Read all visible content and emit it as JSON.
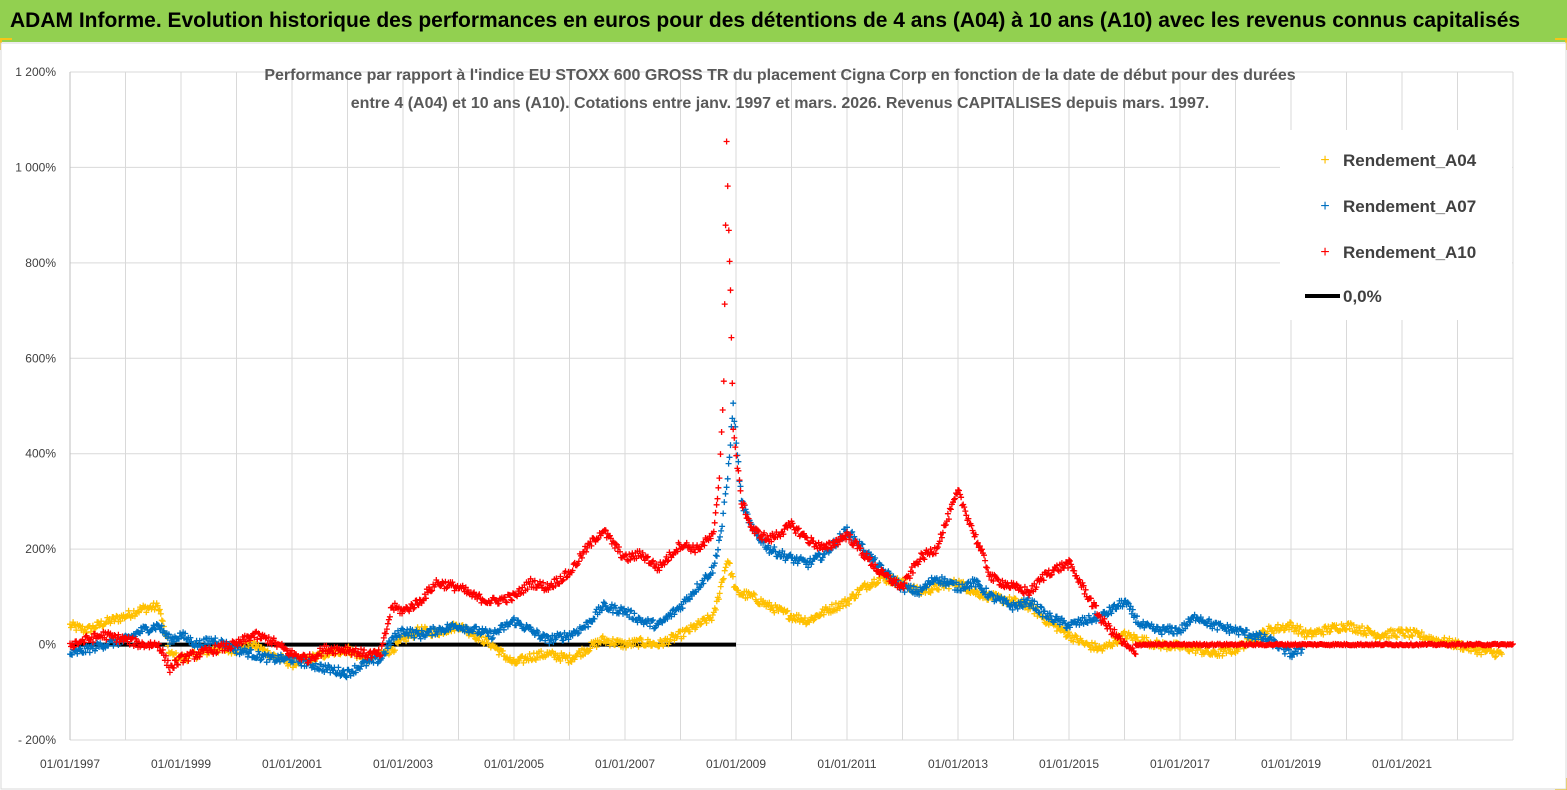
{
  "banner": {
    "title": "ADAM Informe. Evolution historique des performances en euros pour des détentions de 4 ans (A04) à 10 ans (A10) avec les revenus connus capitalisés",
    "background": "#92d050"
  },
  "colors": {
    "A04": "#ffc000",
    "A07": "#0070c0",
    "A10": "#ff0000",
    "zero": "#000000",
    "grid": "#d9d9d9"
  },
  "chart_data": {
    "type": "scatter",
    "title_line1": "Performance par rapport à l'indice EU STOXX 600 GROSS TR  du placement Cigna Corp en fonction de la date de début pour des durées",
    "title_line2": "entre 4 (A04) et 10 ans (A10). Cotations entre janv. 1997 et mars. 2026. Revenus CAPITALISES depuis mars. 1997.",
    "xlabel": "",
    "ylabel": "",
    "x_range": [
      "01/01/1997",
      "01/01/2023"
    ],
    "ylim": [
      -200,
      1200
    ],
    "y_ticks": [
      "- 200%",
      "0%",
      "200%",
      "400%",
      "600%",
      "800%",
      "1 000%",
      "1 200%"
    ],
    "x_ticks": [
      "01/01/1997",
      "01/01/1999",
      "01/01/2001",
      "01/01/2003",
      "01/01/2005",
      "01/01/2007",
      "01/01/2009",
      "01/01/2011",
      "01/01/2013",
      "01/01/2015",
      "01/01/2017",
      "01/01/2019",
      "01/01/2021"
    ],
    "legend_position": "top-right",
    "series": [
      {
        "name": "Rendement_A04",
        "x": [
          1997.0,
          1997.3,
          1997.6,
          1998.0,
          1998.3,
          1998.6,
          1998.8,
          1999.0,
          1999.3,
          1999.6,
          2000.0,
          2000.3,
          2000.6,
          2001.0,
          2001.3,
          2001.6,
          2002.0,
          2002.3,
          2002.6,
          2002.8,
          2003.0,
          2003.3,
          2003.6,
          2004.0,
          2004.3,
          2004.6,
          2005.0,
          2005.3,
          2005.6,
          2006.0,
          2006.3,
          2006.6,
          2007.0,
          2007.3,
          2007.6,
          2008.0,
          2008.3,
          2008.6,
          2008.85,
          2009.0,
          2009.3,
          2009.6,
          2010.0,
          2010.3,
          2010.6,
          2011.0,
          2011.3,
          2011.6,
          2012.0,
          2012.3,
          2012.6,
          2013.0,
          2013.3,
          2013.6,
          2014.0,
          2014.3,
          2014.6,
          2015.0,
          2015.3,
          2015.6,
          2016.0,
          2016.3,
          2016.6,
          2017.0,
          2017.3,
          2017.6,
          2018.0,
          2018.3,
          2018.6,
          2019.0,
          2019.3,
          2019.6,
          2020.0,
          2020.3,
          2020.6,
          2021.0,
          2021.3,
          2021.6,
          2022.0,
          2022.3,
          2022.8
        ],
        "y": [
          40,
          30,
          45,
          60,
          75,
          80,
          -20,
          -30,
          -20,
          -10,
          -10,
          0,
          -20,
          -40,
          -30,
          -20,
          -10,
          -30,
          -20,
          -10,
          10,
          30,
          25,
          40,
          20,
          0,
          -40,
          -25,
          -20,
          -30,
          -10,
          10,
          0,
          5,
          0,
          20,
          40,
          60,
          180,
          110,
          100,
          80,
          60,
          50,
          70,
          90,
          120,
          140,
          130,
          110,
          120,
          130,
          110,
          100,
          90,
          80,
          50,
          20,
          0,
          -10,
          20,
          10,
          0,
          -5,
          -10,
          -20,
          -10,
          10,
          30,
          40,
          20,
          30,
          40,
          30,
          20,
          25,
          20,
          10,
          0,
          -10,
          -20
        ]
      },
      {
        "name": "Rendement_A07",
        "x": [
          1997.0,
          1997.3,
          1997.6,
          1998.0,
          1998.3,
          1998.6,
          1998.8,
          1999.0,
          1999.3,
          1999.6,
          2000.0,
          2000.3,
          2000.6,
          2001.0,
          2001.3,
          2001.6,
          2002.0,
          2002.3,
          2002.6,
          2002.8,
          2003.0,
          2003.3,
          2003.6,
          2004.0,
          2004.3,
          2004.6,
          2005.0,
          2005.3,
          2005.6,
          2006.0,
          2006.3,
          2006.6,
          2007.0,
          2007.3,
          2007.6,
          2008.0,
          2008.3,
          2008.6,
          2008.75,
          2008.85,
          2008.95,
          2009.1,
          2009.3,
          2009.6,
          2010.0,
          2010.3,
          2010.6,
          2011.0,
          2011.3,
          2011.6,
          2012.0,
          2012.3,
          2012.6,
          2013.0,
          2013.3,
          2013.6,
          2014.0,
          2014.3,
          2014.6,
          2015.0,
          2015.3,
          2015.6,
          2016.0,
          2016.3,
          2016.6,
          2017.0,
          2017.3,
          2017.6,
          2018.0,
          2018.3,
          2018.6,
          2019.0,
          2019.2
        ],
        "y": [
          -20,
          -10,
          0,
          10,
          30,
          40,
          10,
          20,
          0,
          10,
          -10,
          -20,
          -30,
          -30,
          -40,
          -50,
          -60,
          -40,
          -30,
          10,
          30,
          20,
          30,
          40,
          30,
          20,
          50,
          30,
          10,
          20,
          40,
          80,
          70,
          50,
          40,
          80,
          120,
          160,
          250,
          350,
          500,
          300,
          240,
          200,
          180,
          170,
          190,
          240,
          200,
          160,
          120,
          110,
          140,
          120,
          130,
          100,
          80,
          90,
          60,
          40,
          50,
          60,
          90,
          40,
          30,
          30,
          60,
          40,
          30,
          20,
          10,
          -20,
          -10
        ]
      },
      {
        "name": "Rendement_A10",
        "x": [
          1997.0,
          1997.3,
          1997.6,
          1998.0,
          1998.3,
          1998.6,
          1998.8,
          1999.0,
          1999.3,
          1999.6,
          2000.0,
          2000.3,
          2000.6,
          2001.0,
          2001.3,
          2001.6,
          2002.0,
          2002.3,
          2002.6,
          2002.8,
          2003.0,
          2003.3,
          2003.6,
          2004.0,
          2004.3,
          2004.6,
          2005.0,
          2005.3,
          2005.6,
          2006.0,
          2006.3,
          2006.6,
          2007.0,
          2007.3,
          2007.6,
          2008.0,
          2008.3,
          2008.6,
          2008.7,
          2008.78,
          2008.83,
          2008.87,
          2008.9,
          2008.95,
          2009.1,
          2009.3,
          2009.6,
          2010.0,
          2010.3,
          2010.6,
          2011.0,
          2011.3,
          2011.6,
          2012.0,
          2012.3,
          2012.6,
          2013.0,
          2013.3,
          2013.6,
          2014.0,
          2014.3,
          2014.6,
          2015.0,
          2015.3,
          2015.6,
          2016.0,
          2016.2
        ],
        "y": [
          0,
          10,
          20,
          10,
          0,
          0,
          -50,
          -30,
          -20,
          -10,
          0,
          20,
          10,
          -20,
          -30,
          -10,
          -10,
          -20,
          -20,
          80,
          70,
          90,
          130,
          120,
          100,
          90,
          100,
          130,
          120,
          150,
          200,
          240,
          180,
          190,
          160,
          210,
          200,
          230,
          350,
          550,
          1050,
          860,
          750,
          450,
          300,
          240,
          220,
          250,
          220,
          200,
          230,
          190,
          150,
          120,
          180,
          200,
          320,
          230,
          140,
          120,
          110,
          150,
          170,
          110,
          50,
          0,
          -20
        ]
      },
      {
        "name": "0,0%",
        "x": [
          1997.0,
          2009.0
        ],
        "y": [
          0,
          0
        ]
      }
    ]
  },
  "legend": {
    "a04": "Rendement_A04",
    "a07": "Rendement_A07",
    "a10": "Rendement_A10",
    "zero": "0,0%"
  }
}
